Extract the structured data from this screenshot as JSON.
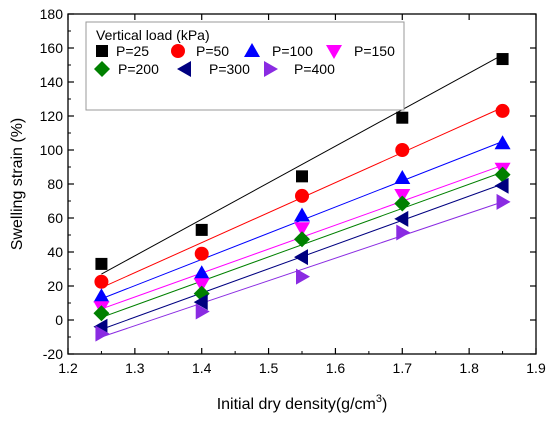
{
  "chart_data": {
    "type": "scatter",
    "xlabel": "Initial dry density(g/cm",
    "xlabel_sup": "3",
    "xlabel_close": ")",
    "ylabel": "Swelling strain (%)",
    "xlim": [
      1.2,
      1.9
    ],
    "ylim": [
      -20,
      180
    ],
    "xticks": [
      "1.2",
      "1.3",
      "1.4",
      "1.5",
      "1.6",
      "1.7",
      "1.8",
      "1.9"
    ],
    "yticks": [
      "-20",
      "0",
      "20",
      "40",
      "60",
      "80",
      "100",
      "120",
      "140",
      "160",
      "180"
    ],
    "grid": false,
    "legend_title": "Vertical load (kPa)",
    "legend_position": "top-left",
    "x": [
      1.25,
      1.4,
      1.55,
      1.7,
      1.85
    ],
    "series": [
      {
        "name": "P=25",
        "values": [
          33,
          53,
          84.5,
          119,
          153.5
        ],
        "fit": [
          27,
          156
        ],
        "color": "#000000",
        "marker": "square"
      },
      {
        "name": "P=50",
        "values": [
          22.5,
          39,
          73,
          100,
          123
        ],
        "fit": [
          19,
          125
        ],
        "color": "#ff0000",
        "marker": "circle"
      },
      {
        "name": "P=100",
        "values": [
          14,
          27.5,
          61.5,
          83.5,
          104
        ],
        "fit": [
          12.5,
          105
        ],
        "color": "#0000ff",
        "marker": "triangle-up"
      },
      {
        "name": "P=150",
        "values": [
          7.5,
          21,
          54,
          73.5,
          89
        ],
        "fit": [
          6.5,
          91
        ],
        "color": "#ff00ff",
        "marker": "triangle-down"
      },
      {
        "name": "P=200",
        "values": [
          4,
          15.5,
          47.5,
          68.5,
          85.5
        ],
        "fit": [
          1.5,
          87
        ],
        "color": "#008000",
        "marker": "diamond"
      },
      {
        "name": "P=300",
        "values": [
          -4,
          10.5,
          37,
          59.5,
          79
        ],
        "fit": [
          -5.5,
          80
        ],
        "color": "#000080",
        "marker": "triangle-left"
      },
      {
        "name": "P=400",
        "values": [
          -8,
          5,
          25.5,
          51.5,
          69.5
        ],
        "fit": [
          -10,
          69.5
        ],
        "color": "#8a2be2",
        "marker": "triangle-right"
      }
    ]
  }
}
